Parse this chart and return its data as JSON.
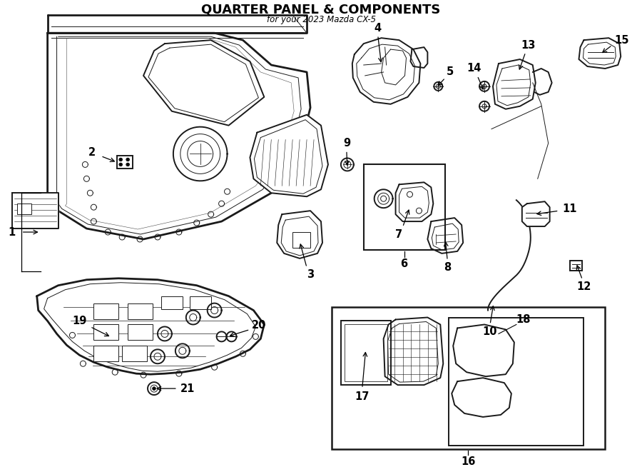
{
  "title": "QUARTER PANEL & COMPONENTS",
  "subtitle": "for your 2023 Mazda CX-5",
  "bg_color": "#ffffff",
  "line_color": "#1a1a1a",
  "lw_main": 1.4,
  "lw_thin": 0.7,
  "lw_thick": 2.0,
  "font_size_title": 11,
  "font_size_num": 9.5
}
